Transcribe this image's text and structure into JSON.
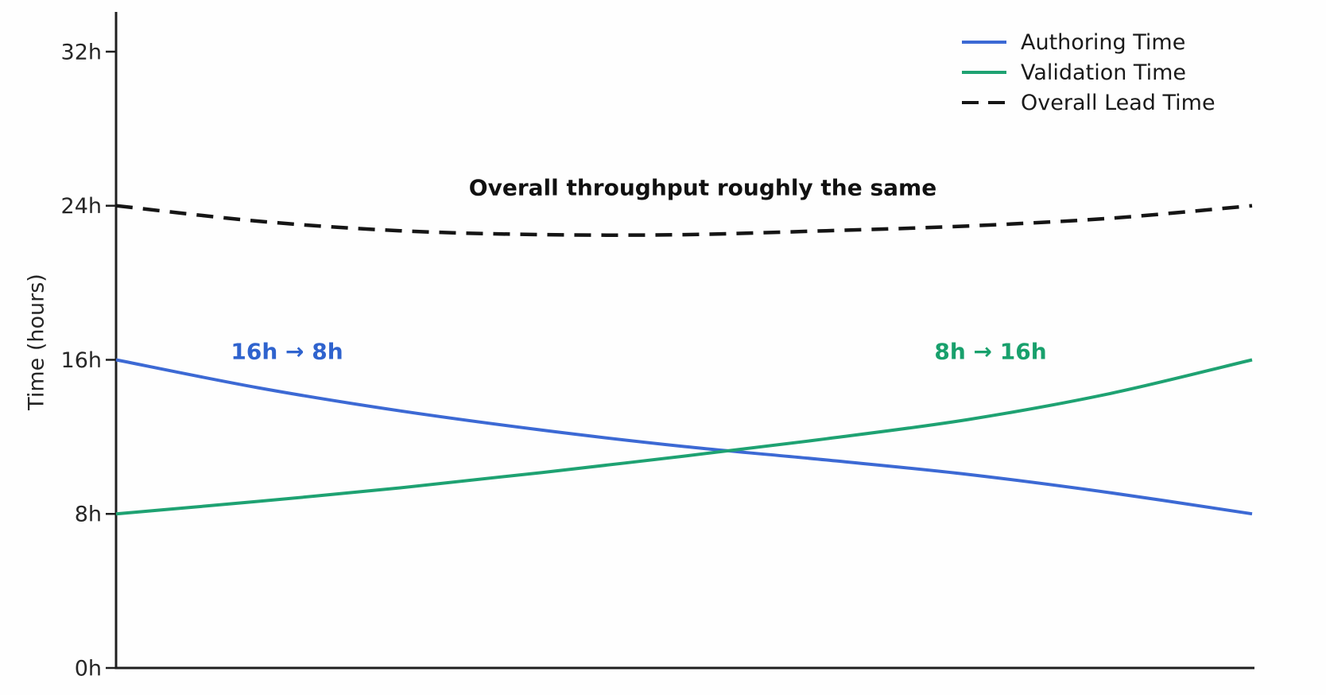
{
  "chart": {
    "ylabel": "Time (hours)",
    "annotations": {
      "authoring": {
        "text": "16h → 8h",
        "color": "#2f63ce"
      },
      "validation": {
        "text": "8h → 16h",
        "color": "#18a06c"
      },
      "overall": {
        "text": "Overall throughput roughly the same",
        "color": "#111111"
      }
    },
    "legend": [
      {
        "label": "Authoring Time",
        "color": "#3c69d4",
        "dashed": false
      },
      {
        "label": "Validation Time",
        "color": "#1ea272",
        "dashed": false
      },
      {
        "label": "Overall Lead Time",
        "color": "#151515",
        "dashed": true
      }
    ],
    "colors": {
      "axis": "#1f1f1f",
      "tick_label": "#262626",
      "background": "#fefefe"
    }
  },
  "chart_data": {
    "type": "line",
    "title": "",
    "xlabel": "",
    "ylabel": "Time (hours)",
    "grid": false,
    "legend_position": "upper right",
    "ylim": [
      0,
      34
    ],
    "yticks": [
      {
        "label": "0h",
        "value": 0
      },
      {
        "label": "8h",
        "value": 8
      },
      {
        "label": "16h",
        "value": 16
      },
      {
        "label": "24h",
        "value": 24
      },
      {
        "label": "32h",
        "value": 32
      }
    ],
    "xticks": [],
    "x": [
      0,
      0.125,
      0.25,
      0.375,
      0.5,
      0.625,
      0.75,
      0.875,
      1
    ],
    "series": [
      {
        "name": "Authoring Time",
        "color": "#3c69d4",
        "style": "solid",
        "values": [
          16,
          14.55,
          13.35,
          12.35,
          11.5,
          10.8,
          10.05,
          9.1,
          8
        ]
      },
      {
        "name": "Validation Time",
        "color": "#1ea272",
        "style": "solid",
        "values": [
          8,
          8.65,
          9.35,
          10.15,
          11.0,
          11.9,
          12.9,
          14.25,
          16
        ]
      },
      {
        "name": "Overall Lead Time",
        "color": "#151515",
        "style": "dashed",
        "values": [
          24,
          23.2,
          22.7,
          22.5,
          22.5,
          22.7,
          22.95,
          23.35,
          24
        ]
      }
    ],
    "annotations": [
      {
        "text": "16h → 8h",
        "series": "Authoring Time",
        "color": "#2f63ce"
      },
      {
        "text": "8h → 16h",
        "series": "Validation Time",
        "color": "#18a06c"
      },
      {
        "text": "Overall throughput roughly the same",
        "series": "Overall Lead Time",
        "color": "#111111"
      }
    ]
  }
}
